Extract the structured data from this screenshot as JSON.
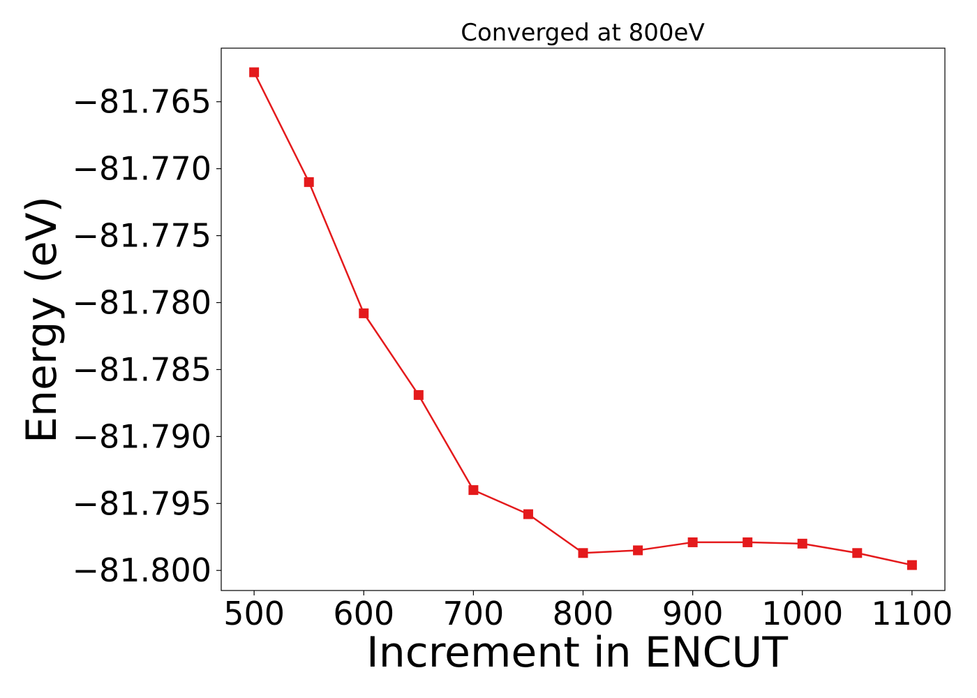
{
  "chart_data": {
    "type": "line",
    "title": "Converged at 800eV",
    "xlabel": "Increment in ENCUT",
    "ylabel": "Energy (eV)",
    "xlim": [
      470,
      1130
    ],
    "ylim": [
      -81.8015,
      -81.761
    ],
    "x_ticks": [
      500,
      600,
      700,
      800,
      900,
      1000,
      1100
    ],
    "y_ticks": [
      -81.765,
      -81.77,
      -81.775,
      -81.78,
      -81.785,
      -81.79,
      -81.795,
      -81.8
    ],
    "y_tick_labels": [
      "−81.765",
      "−81.770",
      "−81.775",
      "−81.780",
      "−81.785",
      "−81.790",
      "−81.795",
      "−81.800"
    ],
    "grid": false,
    "series": [
      {
        "color": "#e41a1c",
        "marker": "square",
        "x": [
          500,
          550,
          600,
          650,
          700,
          750,
          800,
          850,
          900,
          950,
          1000,
          1050,
          1100
        ],
        "y": [
          -81.7628,
          -81.771,
          -81.7808,
          -81.7869,
          -81.794,
          -81.7958,
          -81.7987,
          -81.7985,
          -81.7979,
          -81.7979,
          -81.798,
          -81.7987,
          -81.7996
        ]
      }
    ]
  }
}
